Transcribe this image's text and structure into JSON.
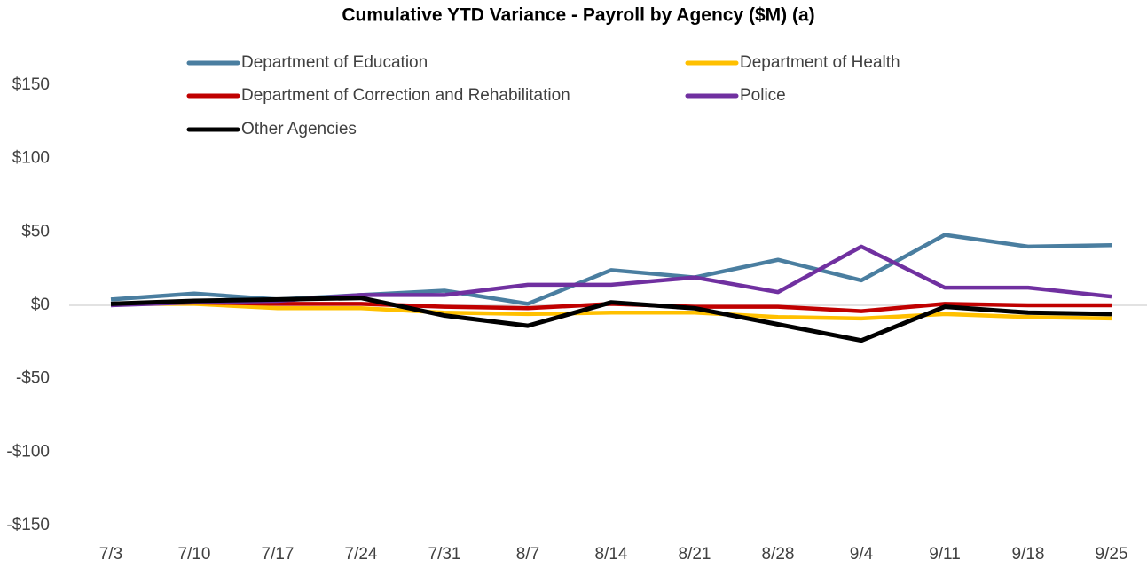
{
  "chart_data": {
    "type": "line",
    "title": "Cumulative YTD Variance - Payroll by Agency ($M) (a)",
    "categories": [
      "7/3",
      "7/10",
      "7/17",
      "7/24",
      "7/31",
      "8/7",
      "8/14",
      "8/21",
      "8/28",
      "9/4",
      "9/11",
      "9/18",
      "9/25"
    ],
    "series": [
      {
        "name": "Department of Education",
        "color": "#4a7ea0",
        "values": [
          4,
          8,
          4,
          7,
          10,
          1,
          24,
          19,
          31,
          17,
          48,
          40,
          41
        ]
      },
      {
        "name": "Department of Health",
        "color": "#ffc000",
        "values": [
          1,
          1,
          -2,
          -2,
          -5,
          -6,
          -5,
          -5,
          -8,
          -9,
          -6,
          -8,
          -9
        ]
      },
      {
        "name": "Department of Correction and Rehabilitation",
        "color": "#c00000",
        "values": [
          1,
          2,
          1,
          1,
          -1,
          -2,
          1,
          -1,
          -1,
          -4,
          1,
          0,
          0
        ]
      },
      {
        "name": "Police",
        "color": "#7030a0",
        "values": [
          0,
          2,
          3,
          7,
          7,
          14,
          14,
          19,
          9,
          40,
          12,
          12,
          6
        ]
      },
      {
        "name": "Other Agencies",
        "color": "#000000",
        "values": [
          1,
          3,
          4,
          5,
          -7,
          -14,
          2,
          -2,
          -13,
          -24,
          -1,
          -5,
          -6
        ]
      }
    ],
    "ylim": [
      -150,
      150
    ],
    "yticks": [
      {
        "value": -150,
        "label": "-$150"
      },
      {
        "value": -100,
        "label": "-$100"
      },
      {
        "value": -50,
        "label": "-$50"
      },
      {
        "value": 0,
        "label": "$0"
      },
      {
        "value": 50,
        "label": "$50"
      },
      {
        "value": 100,
        "label": "$100"
      },
      {
        "value": 150,
        "label": "$150"
      }
    ],
    "grid": false,
    "legend": "top"
  }
}
